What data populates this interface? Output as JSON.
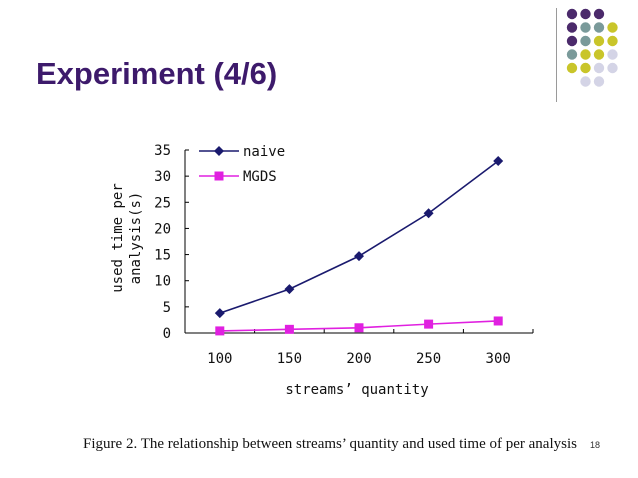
{
  "slide": {
    "title": "Experiment (4/6)",
    "caption": "Figure 2.   The relationship between streams’ quantity and used time of per analysis",
    "page_number": "18"
  },
  "decoration": {
    "dot_grid": [
      [
        "#4b2a6b",
        "#4b2a6b",
        "#4b2a6b",
        null
      ],
      [
        "#4b2a6b",
        "#7a9a9a",
        "#7a9a9a",
        "#c9c52a"
      ],
      [
        "#4b2a6b",
        "#7a9a9a",
        "#c9c52a",
        "#c9c52a"
      ],
      [
        "#7a9a9a",
        "#c9c52a",
        "#c9c52a",
        "#d4d4e6"
      ],
      [
        "#c9c52a",
        "#c9c52a",
        "#d4d4e6",
        "#d4d4e6"
      ],
      [
        null,
        "#d4d4e6",
        "#d4d4e6",
        null
      ]
    ]
  },
  "chart_data": {
    "type": "line",
    "title": "",
    "xlabel": "streams’ quantity",
    "ylabel": "used time per analysis(s)",
    "ylabel_lines": [
      "used time per",
      "analysis(s)"
    ],
    "x": [
      100,
      150,
      200,
      250,
      300
    ],
    "xlim": [
      75,
      325
    ],
    "ylim": [
      0,
      35
    ],
    "yticks": [
      0,
      5,
      10,
      15,
      20,
      25,
      30,
      35
    ],
    "legend_position": "top-left",
    "series": [
      {
        "name": "naive",
        "values": [
          3.8,
          8.4,
          14.7,
          22.9,
          32.9
        ],
        "color": "#1a1a6e",
        "marker": "diamond"
      },
      {
        "name": "MGDS",
        "values": [
          0.4,
          0.7,
          1.0,
          1.7,
          2.3
        ],
        "color": "#e020e0",
        "marker": "square"
      }
    ]
  }
}
